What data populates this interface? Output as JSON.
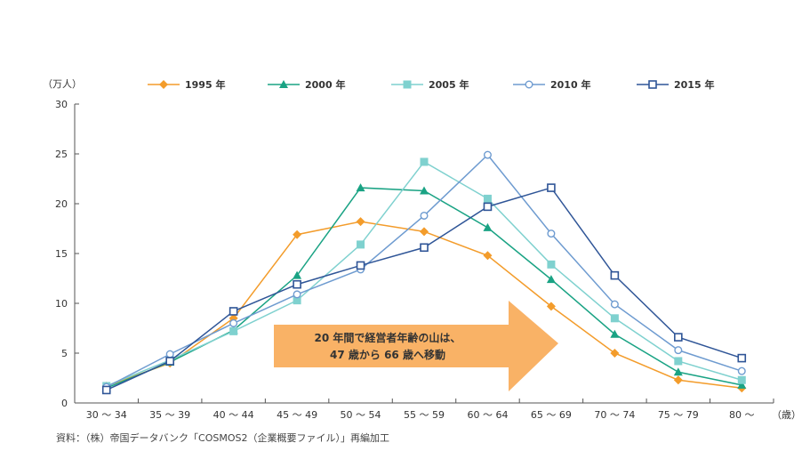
{
  "chart_data": {
    "type": "line",
    "y_unit": "（万人）",
    "x_unit": "（歳）",
    "categories": [
      "30 ～ 34",
      "35 ～ 39",
      "40 ～ 44",
      "45 ～ 49",
      "50 ～ 54",
      "55 ～ 59",
      "60 ～ 64",
      "65 ～ 69",
      "70 ～ 74",
      "75 ～ 79",
      "80 ～"
    ],
    "ylim": [
      0,
      30
    ],
    "yticks": [
      0,
      5,
      10,
      15,
      20,
      25,
      30
    ],
    "series": [
      {
        "name": "1995 年",
        "color": "#f39c2b",
        "marker": "diamond",
        "values": [
          1.7,
          4.0,
          8.5,
          16.9,
          18.2,
          17.2,
          14.8,
          9.7,
          5.0,
          2.3,
          1.5
        ]
      },
      {
        "name": "2000 年",
        "color": "#1aa384",
        "marker": "triangle",
        "values": [
          1.5,
          4.1,
          7.3,
          12.8,
          21.6,
          21.3,
          17.6,
          12.4,
          6.9,
          3.1,
          1.8
        ]
      },
      {
        "name": "2005 年",
        "color": "#7fd1cf",
        "marker": "square-filled",
        "values": [
          1.7,
          4.3,
          7.2,
          10.3,
          15.9,
          24.2,
          20.5,
          13.9,
          8.5,
          4.2,
          2.3
        ]
      },
      {
        "name": "2010 年",
        "color": "#6e9bd0",
        "marker": "circle-open",
        "values": [
          1.6,
          4.9,
          8.0,
          10.9,
          13.4,
          18.8,
          24.9,
          17.0,
          9.9,
          5.3,
          3.2
        ]
      },
      {
        "name": "2015 年",
        "color": "#2f5597",
        "marker": "square-open",
        "values": [
          1.3,
          4.2,
          9.2,
          11.9,
          13.8,
          15.6,
          19.7,
          21.6,
          12.8,
          6.6,
          4.5
        ]
      }
    ],
    "annotation": {
      "line1": "20 年間で経営者年齢の山は、",
      "line2": "47 歳から 66 歳へ移動"
    },
    "legend_position": "top",
    "grid": false
  },
  "source_note": "資料：（株）帝国データバンク「COSMOS2（企業概要ファイル）」再編加工"
}
